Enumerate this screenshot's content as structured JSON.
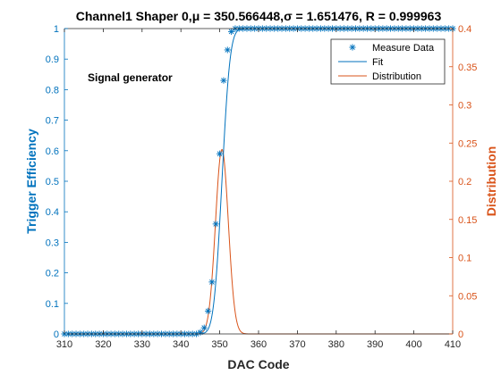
{
  "figure": {
    "title": "Channel1 Shaper 0,μ = 350.566448,σ = 1.651476, R = 0.999963",
    "annotation": "Signal generator"
  },
  "legend": {
    "items": [
      {
        "label": "Measure Data",
        "marker": "asterisk"
      },
      {
        "label": "Fit",
        "marker": "line"
      },
      {
        "label": "Distribution",
        "marker": "line"
      }
    ]
  },
  "colors": {
    "left_axis": "#0072BD",
    "right_axis": "#D95319",
    "axes": "#262626",
    "background": "#ffffff"
  },
  "chart_data": {
    "type": "line",
    "title": "Channel1 Shaper 0,μ = 350.566448,σ = 1.651476, R = 0.999963",
    "xlabel": "DAC Code",
    "ylabel": "Trigger Efficiency",
    "y2label": "Distribution",
    "xlim": [
      310,
      410
    ],
    "ylim": [
      0,
      1
    ],
    "y2lim": [
      0,
      0.4
    ],
    "xticks": [
      "310",
      "320",
      "330",
      "340",
      "350",
      "360",
      "370",
      "380",
      "390",
      "400",
      "410"
    ],
    "yticks": [
      "0",
      "0.1",
      "0.2",
      "0.3",
      "0.4",
      "0.5",
      "0.6",
      "0.7",
      "0.8",
      "0.9",
      "1"
    ],
    "y2ticks": [
      "0",
      "0.05",
      "0.1",
      "0.15",
      "0.2",
      "0.25",
      "0.3",
      "0.35",
      "0.4"
    ],
    "grid": false,
    "legend_position": "top-right",
    "fit_params": {
      "mu": 350.566448,
      "sigma": 1.651476,
      "R": 0.999963
    },
    "series": [
      {
        "name": "Measure Data",
        "style": "markers",
        "axis": "left",
        "color": "#0072BD",
        "x": [
          310,
          311,
          312,
          313,
          314,
          315,
          316,
          317,
          318,
          319,
          320,
          321,
          322,
          323,
          324,
          325,
          326,
          327,
          328,
          329,
          330,
          331,
          332,
          333,
          334,
          335,
          336,
          337,
          338,
          339,
          340,
          341,
          342,
          343,
          344,
          345,
          346,
          347,
          348,
          349,
          350,
          351,
          352,
          353,
          354,
          355,
          356,
          357,
          358,
          359,
          360,
          361,
          362,
          363,
          364,
          365,
          366,
          367,
          368,
          369,
          370,
          371,
          372,
          373,
          374,
          375,
          376,
          377,
          378,
          379,
          380,
          381,
          382,
          383,
          384,
          385,
          386,
          387,
          388,
          389,
          390,
          391,
          392,
          393,
          394,
          395,
          396,
          397,
          398,
          399,
          400,
          401,
          402,
          403,
          404,
          405,
          406,
          407,
          408,
          409,
          410
        ],
        "y": [
          0,
          0,
          0,
          0,
          0,
          0,
          0,
          0,
          0,
          0,
          0,
          0,
          0,
          0,
          0,
          0,
          0,
          0,
          0,
          0,
          0,
          0,
          0,
          0,
          0,
          0,
          0,
          0,
          0,
          0,
          0,
          0,
          0,
          0,
          0,
          0.005,
          0.02,
          0.075,
          0.17,
          0.36,
          0.59,
          0.83,
          0.93,
          0.99,
          1,
          1,
          1,
          1,
          1,
          1,
          1,
          1,
          1,
          1,
          1,
          1,
          1,
          1,
          1,
          1,
          1,
          1,
          1,
          1,
          1,
          1,
          1,
          1,
          1,
          1,
          1,
          1,
          1,
          1,
          1,
          1,
          1,
          1,
          1,
          1,
          1,
          1,
          1,
          1,
          1,
          1,
          1,
          1,
          1,
          1,
          1,
          1,
          1,
          1,
          1,
          1,
          1,
          1,
          1,
          1,
          1
        ]
      },
      {
        "name": "Fit",
        "style": "line",
        "axis": "left",
        "color": "#0072BD",
        "model": "normal_cdf",
        "mu": 350.566448,
        "sigma": 1.651476
      },
      {
        "name": "Distribution",
        "style": "line",
        "axis": "right",
        "color": "#D95319",
        "model": "normal_pdf",
        "mu": 350.566448,
        "sigma": 1.651476
      }
    ]
  }
}
